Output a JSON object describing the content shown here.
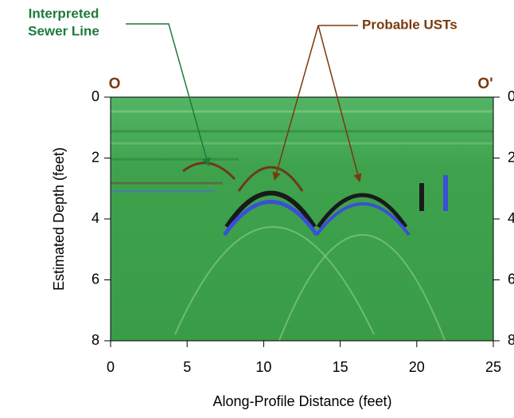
{
  "chart_data": {
    "type": "radargram",
    "xlabel": "Along-Profile Distance (feet)",
    "ylabel": "Estimated Depth (feet)",
    "xlim": [
      0,
      25
    ],
    "xticks": [
      0,
      5,
      10,
      15,
      20,
      25
    ],
    "ylim": [
      8,
      0
    ],
    "yticks": [
      0,
      2,
      4,
      6,
      8
    ],
    "y2lim": [
      8,
      0
    ],
    "y2ticks": [
      0,
      2,
      4,
      6,
      8
    ],
    "profile_start": "O",
    "profile_end": "O'",
    "annotations": [
      "Interpreted",
      "Sewer Line",
      "Probable USTs"
    ]
  }
}
